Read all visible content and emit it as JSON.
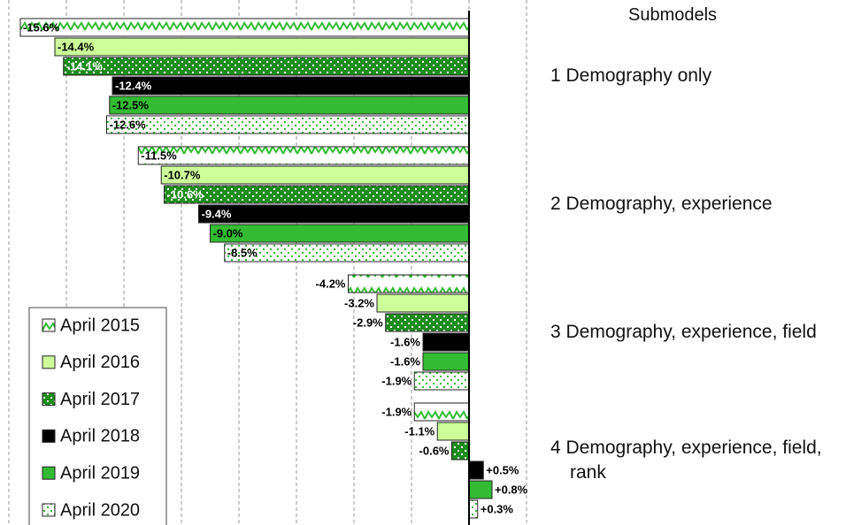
{
  "chart_data": {
    "type": "barh",
    "legend_title": "Submodels",
    "categories": [
      "1 Demography only",
      "2 Demography, experience",
      "3 Demography, experience, field",
      "4 Demography, experience, field, rank"
    ],
    "series": [
      {
        "name": "April 2015",
        "color": "#ffffff",
        "pattern": "zigzag",
        "pattern_color": "#33bb33",
        "values": [
          -15.6,
          -11.5,
          -4.2,
          -1.9
        ],
        "value_labels": [
          "-15.6%",
          "-11.5%",
          "-4.2%",
          "-1.9%"
        ]
      },
      {
        "name": "April 2016",
        "color": "#ccff99",
        "pattern": null,
        "pattern_color": null,
        "values": [
          -14.4,
          -10.7,
          -3.2,
          -1.1
        ],
        "value_labels": [
          "-14.4%",
          "-10.7%",
          "-3.2%",
          "-1.1%"
        ]
      },
      {
        "name": "April 2017",
        "color": "#1e8c1e",
        "pattern": "dots",
        "pattern_color": "#ffffff",
        "values": [
          -14.1,
          -10.6,
          -2.9,
          -0.6
        ],
        "value_labels": [
          "-14.1%",
          "-10.6%",
          "-2.9%",
          "-0.6%"
        ]
      },
      {
        "name": "April 2018",
        "color": "#000000",
        "pattern": null,
        "pattern_color": null,
        "values": [
          -12.4,
          -9.4,
          -1.6,
          0.5
        ],
        "value_labels": [
          "-12.4%",
          "-9.4%",
          "-1.6%",
          "+0.5%"
        ]
      },
      {
        "name": "April 2019",
        "color": "#33bb33",
        "pattern": null,
        "pattern_color": null,
        "values": [
          -12.5,
          -9.0,
          -1.6,
          0.8
        ],
        "value_labels": [
          "-12.5%",
          "-9.0%",
          "-1.6%",
          "+0.8%"
        ]
      },
      {
        "name": "April 2020",
        "color": "#ffffff",
        "pattern": "dots",
        "pattern_color": "#33bb33",
        "values": [
          -12.6,
          -8.5,
          -1.9,
          0.3
        ],
        "value_labels": [
          "-12.6%",
          "-8.5%",
          "-1.9%",
          "+0.3%"
        ]
      }
    ],
    "xlim": [
      -16,
      2
    ],
    "xticks": [
      -16,
      -14,
      -12,
      -10,
      -8,
      -6,
      -4,
      -2,
      0,
      2
    ],
    "grid": true
  }
}
